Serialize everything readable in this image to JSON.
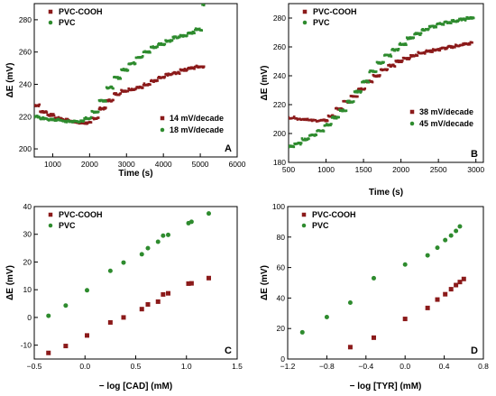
{
  "colors": {
    "red": "#8b1a1a",
    "green": "#2e8b2e"
  },
  "chart_data": [
    {
      "id": "A",
      "type": "scatter",
      "panel_label": "A",
      "xlabel": "Time (s)",
      "ylabel": "ΔE (mV)",
      "xlim": [
        500,
        6000
      ],
      "ylim": [
        195,
        290
      ],
      "xticks": [
        1000,
        2000,
        3000,
        4000,
        5000,
        6000
      ],
      "yticks": [
        200,
        220,
        240,
        260,
        280
      ],
      "legend": {
        "position": "top-left",
        "entries": [
          {
            "name": "PVC-COOH",
            "color": "#8b1a1a",
            "marker": "square"
          },
          {
            "name": "PVC",
            "color": "#2e8b2e",
            "marker": "circle"
          }
        ]
      },
      "annotations": [
        {
          "text": "14 mV/decade",
          "color": "#8b1a1a",
          "marker": "square"
        },
        {
          "text": "18 mV/decade",
          "color": "#2e8b2e",
          "marker": "circle"
        }
      ],
      "series": [
        {
          "name": "PVC-COOH",
          "color": "#8b1a1a",
          "x": [
            500,
            700,
            900,
            1100,
            1300,
            1500,
            1700,
            1900,
            2100,
            2300,
            2500,
            2700,
            2900,
            3100,
            3300,
            3500,
            3700,
            3900,
            4100,
            4300,
            4500,
            4700,
            4900,
            5100
          ],
          "y": [
            227,
            223,
            221,
            219,
            218,
            217,
            216,
            216,
            219,
            225,
            230,
            234,
            236,
            237,
            238,
            240,
            242,
            244,
            246,
            247,
            249,
            250,
            251,
            251
          ]
        },
        {
          "name": "PVC",
          "color": "#2e8b2e",
          "x": [
            500,
            700,
            900,
            1100,
            1300,
            1500,
            1700,
            1900,
            2100,
            2300,
            2500,
            2700,
            2900,
            3100,
            3300,
            3500,
            3700,
            3900,
            4100,
            4300,
            4500,
            4700,
            4900,
            5100
          ],
          "y": [
            220,
            219,
            218,
            218,
            217,
            217,
            217,
            219,
            223,
            230,
            238,
            244,
            249,
            253,
            257,
            260,
            263,
            265,
            267,
            269,
            270,
            272,
            274,
            289
          ]
        }
      ]
    },
    {
      "id": "B",
      "type": "scatter",
      "panel_label": "B",
      "xlabel": "Time (s)",
      "ylabel": "ΔE (mV)",
      "xlim": [
        500,
        3100
      ],
      "ylim": [
        180,
        290
      ],
      "xticks": [
        500,
        1000,
        1500,
        2000,
        2500,
        3000
      ],
      "yticks": [
        180,
        200,
        220,
        240,
        260,
        280
      ],
      "legend": {
        "position": "top-left",
        "entries": [
          {
            "name": "PVC-COOH",
            "color": "#8b1a1a",
            "marker": "square"
          },
          {
            "name": "PVC",
            "color": "#2e8b2e",
            "marker": "circle"
          }
        ]
      },
      "annotations": [
        {
          "text": "38 mV/decade",
          "color": "#8b1a1a",
          "marker": "square"
        },
        {
          "text": "45 mV/decade",
          "color": "#2e8b2e",
          "marker": "circle"
        }
      ],
      "series": [
        {
          "name": "PVC-COOH",
          "color": "#8b1a1a",
          "x": [
            500,
            650,
            800,
            950,
            1050,
            1150,
            1250,
            1350,
            1450,
            1550,
            1650,
            1750,
            1850,
            1950,
            2050,
            2150,
            2250,
            2350,
            2450,
            2550,
            2650,
            2750,
            2850,
            2950
          ],
          "y": [
            211,
            210,
            209,
            209,
            212,
            217,
            222,
            226,
            231,
            236,
            240,
            244,
            247,
            250,
            252,
            254,
            256,
            257,
            258,
            259,
            260,
            261,
            262,
            263
          ]
        },
        {
          "name": "PVC",
          "color": "#2e8b2e",
          "x": [
            500,
            600,
            700,
            800,
            900,
            1000,
            1100,
            1200,
            1300,
            1400,
            1500,
            1600,
            1700,
            1800,
            1900,
            2000,
            2100,
            2200,
            2300,
            2400,
            2500,
            2600,
            2700,
            2800,
            2900,
            2970
          ],
          "y": [
            191,
            193,
            196,
            199,
            202,
            206,
            211,
            216,
            222,
            229,
            236,
            243,
            249,
            254,
            258,
            262,
            266,
            269,
            272,
            274,
            276,
            277,
            278,
            279,
            280,
            280
          ]
        }
      ]
    },
    {
      "id": "C",
      "type": "scatter",
      "panel_label": "C",
      "xlabel": "− log [CAD] (mM)",
      "ylabel": "ΔE (mV)",
      "xlim": [
        -0.5,
        1.5
      ],
      "ylim": [
        -15,
        40
      ],
      "xticks": [
        -0.5,
        0.0,
        0.5,
        1.0,
        1.5
      ],
      "yticks": [
        -10,
        0,
        10,
        20,
        30,
        40
      ],
      "legend": {
        "position": "top-left",
        "entries": [
          {
            "name": "PVC-COOH",
            "color": "#8b1a1a",
            "marker": "square"
          },
          {
            "name": "PVC",
            "color": "#2e8b2e",
            "marker": "circle"
          }
        ]
      },
      "series": [
        {
          "name": "PVC-COOH",
          "color": "#8b1a1a",
          "marker": "square",
          "x": [
            -0.36,
            -0.19,
            0.02,
            0.25,
            0.38,
            0.56,
            0.62,
            0.72,
            0.77,
            0.82,
            1.02,
            1.05,
            1.22
          ],
          "y": [
            -12.8,
            -10.3,
            -6.5,
            -1.8,
            0.0,
            3.0,
            4.7,
            5.7,
            8.3,
            8.7,
            12.2,
            12.3,
            14.2
          ]
        },
        {
          "name": "PVC",
          "color": "#2e8b2e",
          "marker": "circle",
          "x": [
            -0.36,
            -0.19,
            0.02,
            0.25,
            0.38,
            0.56,
            0.62,
            0.72,
            0.77,
            0.82,
            1.02,
            1.05,
            1.22
          ],
          "y": [
            0.6,
            4.3,
            9.8,
            16.8,
            19.8,
            22.8,
            25.0,
            27.3,
            29.5,
            29.8,
            34.0,
            34.5,
            37.5
          ]
        }
      ]
    },
    {
      "id": "D",
      "type": "scatter",
      "panel_label": "D",
      "xlabel": "− log [TYR] (mM)",
      "ylabel": "ΔE (mV)",
      "xlim": [
        -1.2,
        0.8
      ],
      "ylim": [
        0,
        100
      ],
      "xticks": [
        -1.2,
        -0.8,
        -0.4,
        0.0,
        0.4,
        0.8
      ],
      "yticks": [
        0,
        20,
        40,
        60,
        80,
        100
      ],
      "legend": {
        "position": "top-left",
        "entries": [
          {
            "name": "PVC-COOH",
            "color": "#8b1a1a",
            "marker": "square"
          },
          {
            "name": "PVC",
            "color": "#2e8b2e",
            "marker": "circle"
          }
        ]
      },
      "series": [
        {
          "name": "PVC-COOH",
          "color": "#8b1a1a",
          "marker": "square",
          "x": [
            -0.56,
            -0.32,
            0.0,
            0.23,
            0.33,
            0.41,
            0.47,
            0.52,
            0.56,
            0.6
          ],
          "y": [
            7.8,
            14.0,
            26.3,
            33.5,
            39.0,
            42.5,
            45.8,
            48.5,
            50.5,
            52.5
          ]
        },
        {
          "name": "PVC",
          "color": "#2e8b2e",
          "marker": "circle",
          "x": [
            -1.05,
            -0.8,
            -0.56,
            -0.32,
            0.0,
            0.23,
            0.33,
            0.41,
            0.47,
            0.52,
            0.56
          ],
          "y": [
            17.5,
            27.5,
            37.0,
            53.0,
            62.0,
            68.0,
            73.0,
            78.0,
            81.0,
            84.0,
            87.0
          ]
        }
      ]
    }
  ]
}
